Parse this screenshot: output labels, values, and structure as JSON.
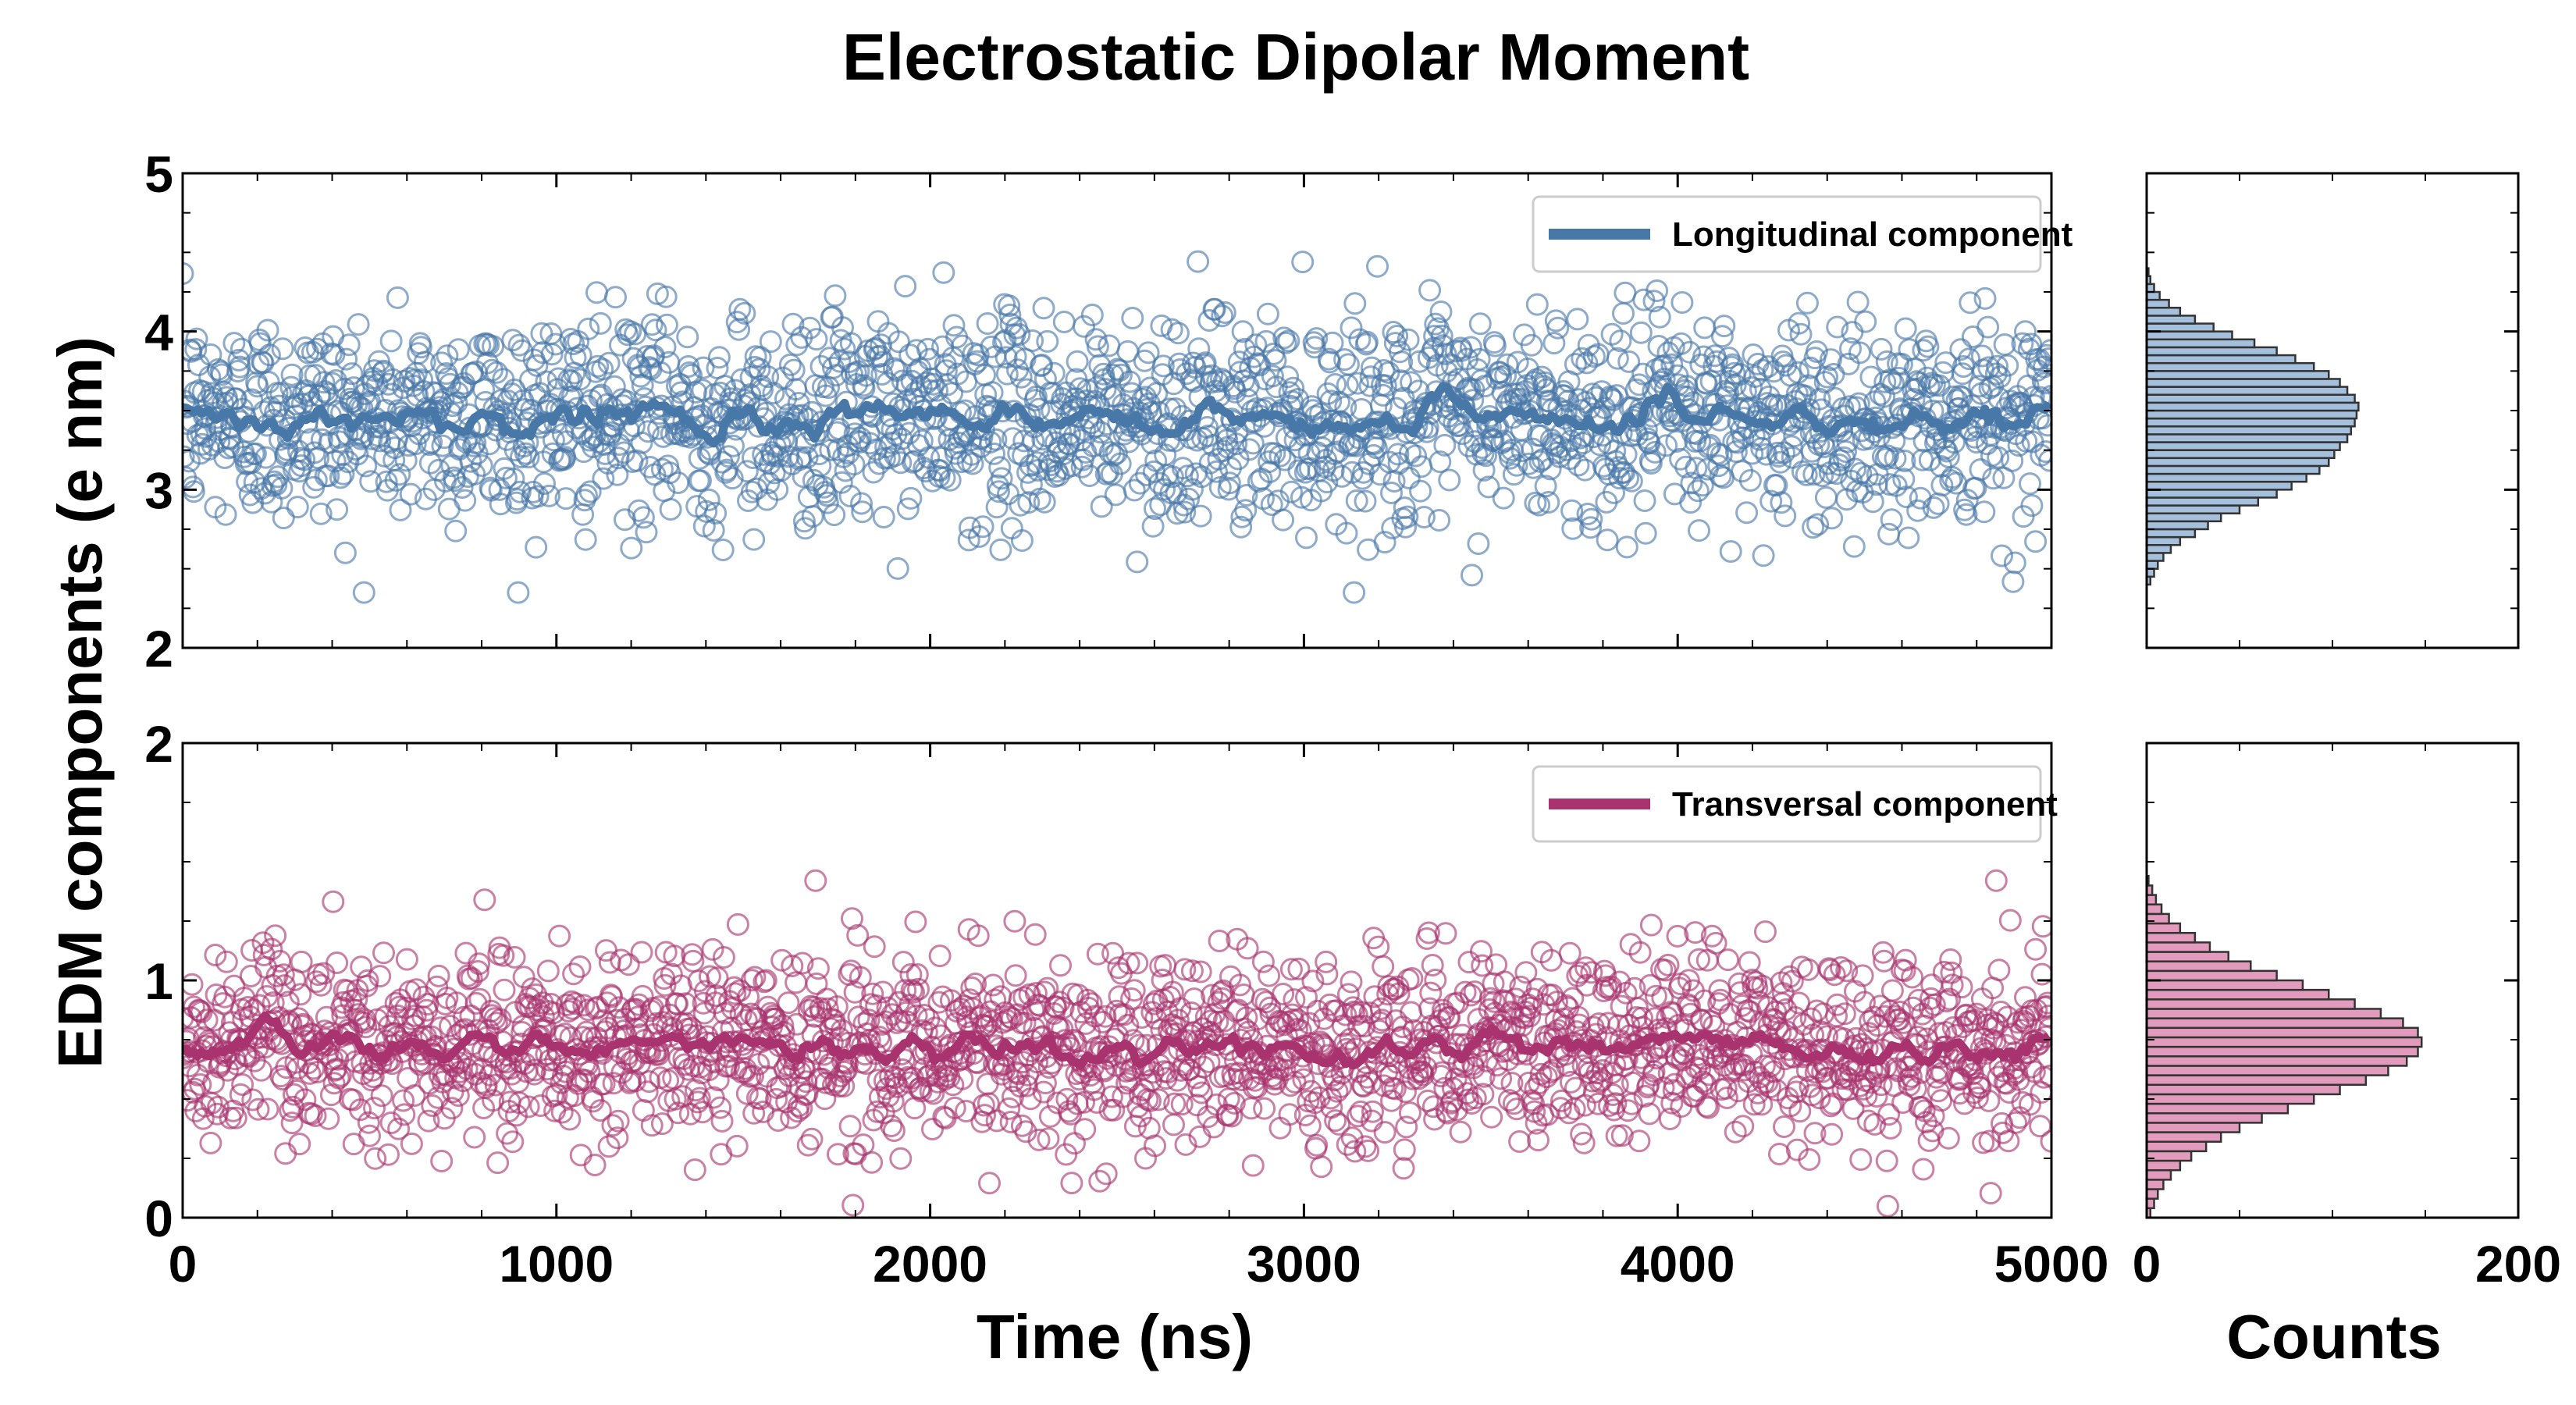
{
  "figure": {
    "title": "Electrostatic Dipolar Moment",
    "ylabel": "EDM components (e nm)",
    "xlabel": "Time (ns)",
    "hist_xlabel": "Counts"
  },
  "chart_data": [
    {
      "id": "longitudinal",
      "type": "scatter",
      "series_name": "Longitudinal component",
      "color": "#4878a8",
      "xlim": [
        0,
        5000
      ],
      "ylim": [
        2,
        5
      ],
      "xticks": [
        0,
        1000,
        2000,
        3000,
        4000,
        5000
      ],
      "yticks": [
        2,
        3,
        4,
        5
      ],
      "y_mean": 3.45,
      "y_spread": 0.33,
      "y_range": [
        2.35,
        4.45
      ],
      "n_points": 2000,
      "legend_position": "top-right",
      "running_mean": true
    },
    {
      "id": "transversal",
      "type": "scatter",
      "series_name": "Transversal component",
      "color": "#a8336e",
      "xlim": [
        0,
        5000
      ],
      "ylim": [
        0,
        2
      ],
      "xticks": [
        0,
        1000,
        2000,
        3000,
        4000,
        5000
      ],
      "yticks": [
        0,
        1,
        2
      ],
      "y_mean": 0.72,
      "y_spread": 0.2,
      "y_range": [
        0.02,
        1.42
      ],
      "n_points": 2000,
      "legend_position": "top-right",
      "running_mean": true
    },
    {
      "id": "longitudinal_hist",
      "type": "bar",
      "orientation": "horizontal",
      "xlabel": "",
      "xlim": [
        0,
        200
      ],
      "xticks": [],
      "ylim": [
        2,
        5
      ],
      "bin_width": 0.05,
      "bin_start": 2.4,
      "counts": [
        2,
        4,
        6,
        9,
        13,
        18,
        26,
        33,
        40,
        50,
        60,
        70,
        78,
        86,
        93,
        98,
        101,
        104,
        108,
        110,
        112,
        113,
        114,
        112,
        108,
        104,
        98,
        90,
        80,
        70,
        58,
        46,
        36,
        26,
        18,
        12,
        7,
        4,
        2,
        1
      ],
      "face_color": "#a4c0dd",
      "edge_color": "#333333"
    },
    {
      "id": "transversal_hist",
      "type": "bar",
      "orientation": "horizontal",
      "xlabel": "Counts",
      "xlim": [
        0,
        200
      ],
      "xticks": [
        0,
        200
      ],
      "ylim": [
        0,
        2
      ],
      "bin_width": 0.04,
      "bin_start": 0.0,
      "counts": [
        2,
        4,
        6,
        9,
        13,
        18,
        24,
        32,
        40,
        50,
        62,
        76,
        90,
        104,
        118,
        130,
        140,
        146,
        148,
        146,
        138,
        126,
        112,
        98,
        84,
        70,
        56,
        44,
        34,
        26,
        18,
        12,
        8,
        5,
        3,
        1
      ],
      "face_color": "#e29bbc",
      "edge_color": "#333333"
    }
  ]
}
